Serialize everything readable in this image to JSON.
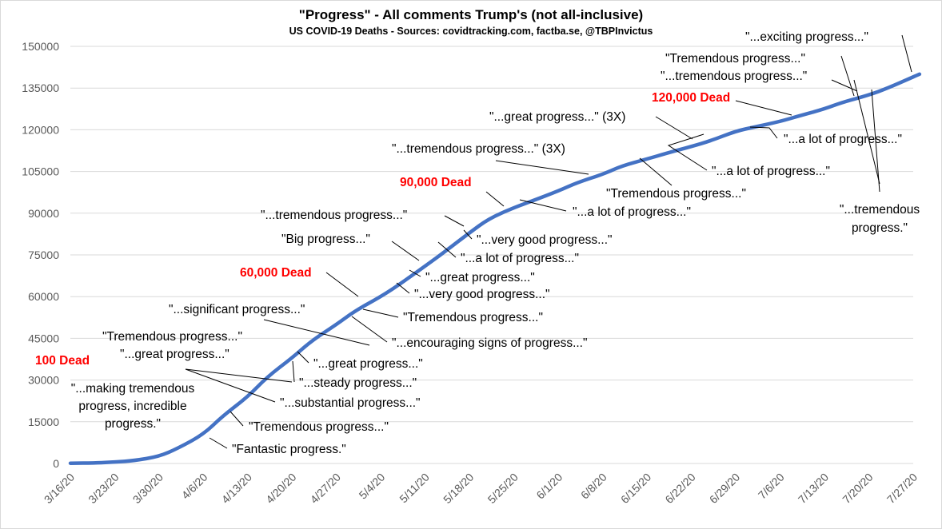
{
  "chart_data": {
    "type": "line",
    "title": "\"Progress\" - All comments Trump's (not all-inclusive)",
    "subtitle": "US COVID-19 Deaths - Sources: covidtracking.com, factba.se, @TBPInvictus",
    "ylim": [
      0,
      150000
    ],
    "yticks": [
      "0",
      "15000",
      "30000",
      "45000",
      "60000",
      "75000",
      "90000",
      "105000",
      "120000",
      "135000",
      "150000"
    ],
    "xticks": [
      "3/16/20",
      "3/23/20",
      "3/30/20",
      "4/6/20",
      "4/13/20",
      "4/20/20",
      "4/27/20",
      "5/4/20",
      "5/11/20",
      "5/18/20",
      "5/25/20",
      "6/1/20",
      "6/8/20",
      "6/15/20",
      "6/22/20",
      "6/29/20",
      "7/6/20",
      "7/13/20",
      "7/20/20",
      "7/27/20"
    ],
    "grid": true,
    "color": "#4472c4",
    "series": [
      {
        "name": "",
        "x": [
          "3/16/20",
          "3/20/20",
          "3/23/20",
          "3/26/20",
          "3/30/20",
          "4/2/20",
          "4/6/20",
          "4/9/20",
          "4/13/20",
          "4/16/20",
          "4/20/20",
          "4/23/20",
          "4/27/20",
          "4/30/20",
          "5/4/20",
          "5/7/20",
          "5/11/20",
          "5/14/20",
          "5/18/20",
          "5/21/20",
          "5/25/20",
          "5/28/20",
          "6/1/20",
          "6/4/20",
          "6/8/20",
          "6/11/20",
          "6/15/20",
          "6/18/20",
          "6/22/20",
          "6/25/20",
          "6/29/20",
          "7/2/20",
          "7/6/20",
          "7/9/20",
          "7/13/20",
          "7/16/20",
          "7/20/20",
          "7/23/20",
          "7/27/20",
          "7/28/20"
        ],
        "values": [
          100,
          200,
          500,
          1000,
          2500,
          5500,
          10500,
          17000,
          24000,
          31000,
          38000,
          44000,
          50000,
          55000,
          60000,
          64500,
          71000,
          76000,
          83000,
          88000,
          92000,
          94500,
          98000,
          101000,
          104000,
          107000,
          109500,
          111500,
          114000,
          116000,
          119500,
          121000,
          123000,
          125000,
          127500,
          130000,
          132500,
          135000,
          139000,
          140000
        ]
      }
    ],
    "annotations": [
      {
        "name": "annotation-100-dead",
        "text": "100 Dead",
        "type": "dead",
        "date": "3/16/20",
        "value": 100
      },
      {
        "name": "annotation-making-tremendous",
        "lines": [
          "\"...making tremendous",
          "progress, incredible",
          "progress.\""
        ],
        "date": "3/30/20",
        "value": 2500
      },
      {
        "name": "annotation-fantastic",
        "text": "\"Fantastic progress.\"",
        "date": "4/6/20",
        "value": 10500
      },
      {
        "name": "annotation-tremendous-1",
        "text": "\"Tremendous progress...\"",
        "date": "4/13/20",
        "value": 20000
      },
      {
        "name": "annotation-substantial",
        "text": "\"...substantial progress...\"",
        "date": "4/16/20",
        "value": 27000
      },
      {
        "name": "annotation-steady",
        "text": "\"...steady progress...\"",
        "date": "4/18/20",
        "value": 35000
      },
      {
        "name": "annotation-tremendous-2",
        "text": "\"Tremendous progress...\"",
        "date": "4/16/20",
        "value": 31000
      },
      {
        "name": "annotation-great-1",
        "text": "\"...great progress...\"",
        "date": "4/16/20",
        "value": 31000
      },
      {
        "name": "annotation-great-2",
        "text": "\"...great progress...\"",
        "date": "4/21/20",
        "value": 41000
      },
      {
        "name": "annotation-significant",
        "text": "\"...significant progress...\"",
        "date": "4/26/20",
        "value": 48500
      },
      {
        "name": "annotation-encouraging",
        "text": "\"...encouraging signs of progress...\"",
        "date": "4/30/20",
        "value": 52000
      },
      {
        "name": "annotation-tremendous-3",
        "text": "\"Tremendous progress...\"",
        "date": "5/3/20",
        "value": 57000
      },
      {
        "name": "annotation-60000-dead",
        "text": "60,000 Dead",
        "type": "dead",
        "date": "5/4/20",
        "value": 60000
      },
      {
        "name": "annotation-very-good-1",
        "text": "\"...very good progress...\"",
        "date": "5/8/20",
        "value": 66000
      },
      {
        "name": "annotation-great-3",
        "text": "\"...great progress...\"",
        "date": "5/10/20",
        "value": 69000
      },
      {
        "name": "annotation-big-progress",
        "text": "\"Big progress...\"",
        "date": "5/12/20",
        "value": 73000
      },
      {
        "name": "annotation-lot-1",
        "text": "\"...a lot of progress...\"",
        "date": "5/14/20",
        "value": 76000
      },
      {
        "name": "annotation-tremendous-4",
        "text": "\"...tremendous progress...\"",
        "date": "5/19/20",
        "value": 84500
      },
      {
        "name": "annotation-very-good-2",
        "text": "\"...very good progress...\"",
        "date": "5/21/20",
        "value": 88000
      },
      {
        "name": "annotation-90000-dead",
        "text": "90,000 Dead",
        "type": "dead",
        "date": "5/25/20",
        "value": 92000
      },
      {
        "name": "annotation-lot-2",
        "text": "\"...a lot of progress...\"",
        "date": "5/27/20",
        "value": 93000
      },
      {
        "name": "annotation-tremendous-5",
        "text": "\"...tremendous progress...\" (3X)",
        "date": "6/8/20",
        "value": 104000
      },
      {
        "name": "annotation-tremendous-6",
        "text": "\"Tremendous progress...\"",
        "date": "6/15/20",
        "value": 109500
      },
      {
        "name": "annotation-great-4",
        "text": "\"...great progress...\" (3X)",
        "date": "6/24/20",
        "value": 115000
      },
      {
        "name": "annotation-lot-3",
        "text": "\"...a lot of progress...\"",
        "date": "6/26/20",
        "value": 117000
      },
      {
        "name": "annotation-120000-dead",
        "text": "120,000 Dead",
        "type": "dead",
        "date": "7/2/20",
        "value": 121000
      },
      {
        "name": "annotation-lot-4",
        "text": "\"...a lot of progress...\"",
        "date": "7/2/20",
        "value": 121000
      },
      {
        "name": "annotation-tremendous-7",
        "text": "\"...tremendous progress...\"",
        "date": "7/20/20",
        "value": 132500
      },
      {
        "name": "annotation-tremendous-8",
        "text": "\"Tremendous progress...\"",
        "date": "7/18/20",
        "value": 131000
      },
      {
        "name": "annotation-tremendous-9",
        "lines": [
          "\"...tremendous",
          "progress.\""
        ],
        "date": "7/21/20",
        "value": 133000
      },
      {
        "name": "annotation-exciting",
        "text": "\"...exciting progress...\"",
        "date": "7/28/20",
        "value": 140000
      }
    ]
  }
}
